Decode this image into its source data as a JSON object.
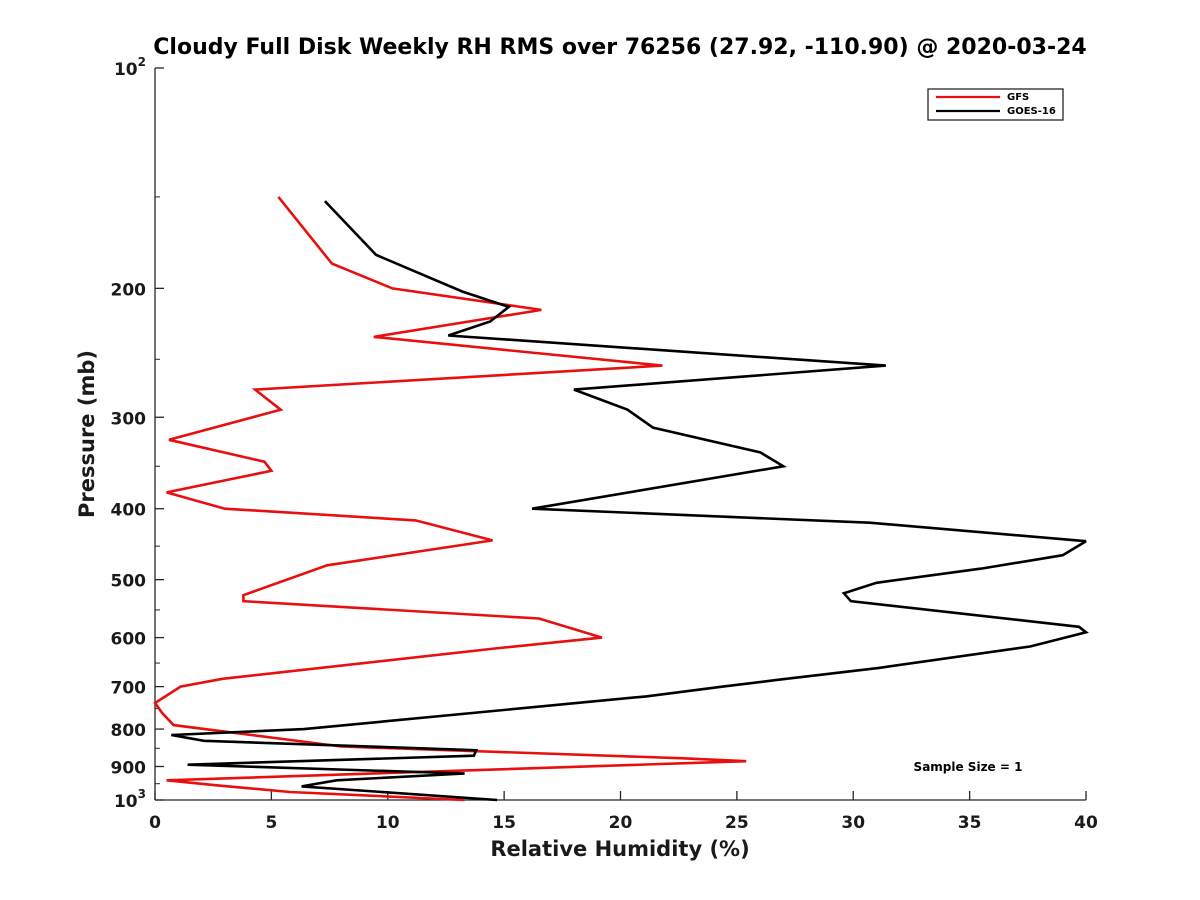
{
  "chart_data": {
    "type": "line",
    "title": "Cloudy Full Disk Weekly RH RMS over 76256 (27.92, -110.90) @ 2020-03-24",
    "xlabel": "Relative Humidity (%)",
    "ylabel": "Pressure (mb)",
    "xlim": [
      0,
      40
    ],
    "ylim": [
      1000,
      100
    ],
    "yscale": "log",
    "xticks": [
      0,
      5,
      10,
      15,
      20,
      25,
      30,
      35,
      40
    ],
    "yticks": [
      {
        "value": 100,
        "base": "10",
        "exp": "2"
      },
      {
        "value": 200,
        "label": "200"
      },
      {
        "value": 300,
        "label": "300"
      },
      {
        "value": 400,
        "label": "400"
      },
      {
        "value": 500,
        "label": "500"
      },
      {
        "value": 600,
        "label": "600"
      },
      {
        "value": 700,
        "label": "700"
      },
      {
        "value": 800,
        "label": "800"
      },
      {
        "value": 900,
        "label": "900"
      },
      {
        "value": 1000,
        "base": "10",
        "exp": "3"
      }
    ],
    "legend_position": "top-right",
    "annotation": "Sample Size = 1",
    "series": [
      {
        "name": "GFS",
        "color": "#e8100f",
        "x": [
          5.3,
          7.6,
          10.2,
          16.6,
          9.4,
          21.8,
          4.3,
          5.4,
          0.6,
          4.7,
          5.0,
          0.5,
          3.0,
          11.2,
          14.5,
          7.4,
          3.8,
          3.8,
          16.5,
          19.2,
          14.8,
          2.9,
          1.1,
          0.0,
          0.3,
          0.8,
          8.0,
          22.7,
          25.4,
          0.5,
          2.7,
          5.8,
          13.3
        ],
        "y": [
          150,
          185,
          200,
          214,
          233,
          255,
          275,
          293,
          322,
          345,
          355,
          380,
          400,
          415,
          442,
          478,
          525,
          535,
          565,
          600,
          620,
          683,
          700,
          737,
          760,
          790,
          845,
          877,
          885,
          940,
          955,
          975,
          1000
        ]
      },
      {
        "name": "GOES-16",
        "color": "#000000",
        "x": [
          7.3,
          9.5,
          13.2,
          15.2,
          14.4,
          12.6,
          31.4,
          18.0,
          20.3,
          21.4,
          26.0,
          27.0,
          16.2,
          30.7,
          40.0,
          39.0,
          35.5,
          31.0,
          29.6,
          29.9,
          39.7,
          40.0,
          37.6,
          31.1,
          26.8,
          24.4,
          21.1,
          6.4,
          0.7,
          2.1,
          13.8,
          13.7,
          1.4,
          13.3,
          7.8,
          6.3,
          14.7
        ],
        "y": [
          152,
          180,
          202,
          212,
          222,
          232,
          255,
          275,
          293,
          310,
          335,
          350,
          400,
          418,
          443,
          463,
          483,
          505,
          522,
          535,
          580,
          590,
          617,
          660,
          685,
          700,
          722,
          800,
          815,
          830,
          855,
          870,
          895,
          920,
          940,
          958,
          1000
        ]
      }
    ]
  }
}
